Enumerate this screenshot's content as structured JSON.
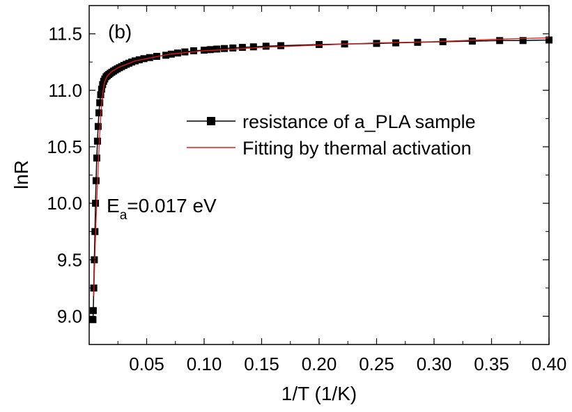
{
  "chart_data": {
    "type": "line",
    "panel_label": "(b)",
    "xlabel": "1/T (1/K)",
    "ylabel": "lnR",
    "xlim": [
      0.0,
      0.4
    ],
    "ylim": [
      8.75,
      11.75
    ],
    "x_ticks": [
      0.05,
      0.1,
      0.15,
      0.2,
      0.25,
      0.3,
      0.35,
      0.4
    ],
    "x_tick_labels": [
      "0.05",
      "0.10",
      "0.15",
      "0.20",
      "0.25",
      "0.30",
      "0.35",
      "0.40"
    ],
    "y_ticks": [
      9.0,
      9.5,
      10.0,
      10.5,
      11.0,
      11.5
    ],
    "y_tick_labels": [
      "9.0",
      "9.5",
      "10.0",
      "10.5",
      "11.0",
      "11.5"
    ],
    "grid": false,
    "legend_position": "center-right",
    "annotation": {
      "prefix": "E",
      "subscript": "a",
      "suffix": "=0.017 eV"
    },
    "series": [
      {
        "name": "resistance of a_PLA sample",
        "style": "line-with-square-markers",
        "color": "#000000",
        "x": [
          0.0033,
          0.0036,
          0.004,
          0.0045,
          0.005,
          0.0055,
          0.006,
          0.0066,
          0.0072,
          0.0078,
          0.0085,
          0.0092,
          0.01,
          0.0108,
          0.0117,
          0.0126,
          0.0136,
          0.0147,
          0.0158,
          0.017,
          0.0183,
          0.0197,
          0.0212,
          0.0228,
          0.0245,
          0.0263,
          0.0282,
          0.0302,
          0.0323,
          0.0345,
          0.037,
          0.04,
          0.0435,
          0.0476,
          0.0526,
          0.0588,
          0.0667,
          0.0714,
          0.0769,
          0.0833,
          0.0909,
          0.1,
          0.1053,
          0.1111,
          0.1176,
          0.125,
          0.1333,
          0.1429,
          0.1538,
          0.1667,
          0.2,
          0.2222,
          0.25,
          0.2667,
          0.2857,
          0.3077,
          0.3333,
          0.3571,
          0.3774,
          0.4
        ],
        "y": [
          8.97,
          9.05,
          9.25,
          9.5,
          9.75,
          10.0,
          10.2,
          10.4,
          10.55,
          10.68,
          10.8,
          10.89,
          10.96,
          11.01,
          11.05,
          11.08,
          11.1,
          11.12,
          11.13,
          11.14,
          11.15,
          11.16,
          11.17,
          11.18,
          11.19,
          11.2,
          11.21,
          11.22,
          11.23,
          11.24,
          11.25,
          11.26,
          11.27,
          11.28,
          11.29,
          11.3,
          11.31,
          11.32,
          11.33,
          11.34,
          11.35,
          11.355,
          11.36,
          11.365,
          11.37,
          11.375,
          11.38,
          11.385,
          11.39,
          11.395,
          11.405,
          11.41,
          11.415,
          11.42,
          11.425,
          11.43,
          11.435,
          11.44,
          11.44,
          11.445
        ]
      },
      {
        "name": "Fitting by thermal activation",
        "style": "line",
        "color": "#e41a1c",
        "x": [
          0.004,
          0.005,
          0.006,
          0.007,
          0.008,
          0.009,
          0.01,
          0.011,
          0.012,
          0.013,
          0.014,
          0.015,
          0.016,
          0.018,
          0.02,
          0.022,
          0.025,
          0.03,
          0.035,
          0.04,
          0.05,
          0.06,
          0.07,
          0.08,
          0.09,
          0.1,
          0.12,
          0.15,
          0.2,
          0.25,
          0.3,
          0.35,
          0.4
        ],
        "y": [
          9.18,
          9.55,
          9.85,
          10.12,
          10.36,
          10.58,
          10.76,
          10.9,
          10.99,
          11.05,
          11.09,
          11.11,
          11.13,
          11.15,
          11.17,
          11.18,
          11.2,
          11.22,
          11.24,
          11.26,
          11.28,
          11.3,
          11.32,
          11.33,
          11.34,
          11.35,
          11.36,
          11.38,
          11.4,
          11.42,
          11.43,
          11.45,
          11.465
        ]
      }
    ]
  }
}
